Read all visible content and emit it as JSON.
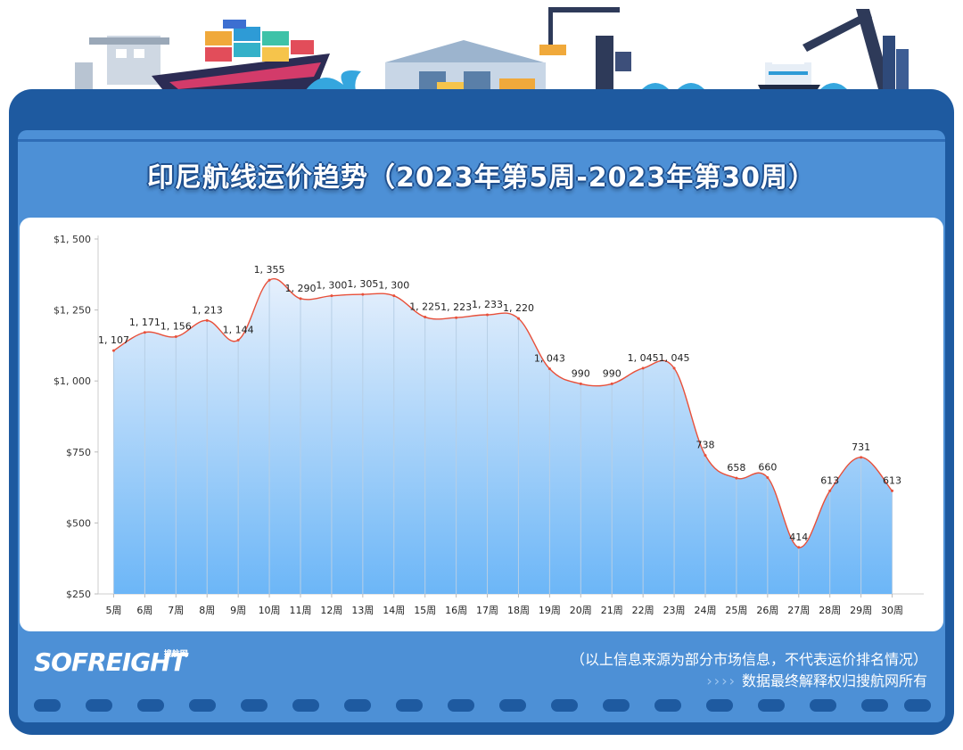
{
  "title": "印尼航线运价趋势（2023年第5周-2023年第30周）",
  "footer": {
    "logo": "SOFREIGHT",
    "logo_sub": "搜航网",
    "note_line1": "（以上信息来源为部分市场信息，不代表运价排名情况）",
    "note_line2": "数据最终解释权归搜航网所有",
    "arrows": "››››"
  },
  "colors": {
    "frame": "#1e5aa0",
    "panel": "#4d90d6",
    "line": "#e8503a",
    "area_top": "#e6f0fc",
    "area_bottom": "#6cb6f7"
  },
  "chart_data": {
    "type": "area",
    "title": "印尼航线运价趋势（2023年第5周-2023年第30周）",
    "categories": [
      "5周",
      "6周",
      "7周",
      "8周",
      "9周",
      "10周",
      "11周",
      "12周",
      "13周",
      "14周",
      "15周",
      "16周",
      "17周",
      "18周",
      "19周",
      "20周",
      "21周",
      "22周",
      "23周",
      "24周",
      "25周",
      "26周",
      "27周",
      "28周",
      "29周",
      "30周"
    ],
    "values": [
      1107,
      1171,
      1156,
      1213,
      1144,
      1355,
      1290,
      1300,
      1305,
      1300,
      1225,
      1223,
      1233,
      1220,
      1043,
      990,
      990,
      1045,
      1045,
      738,
      658,
      660,
      414,
      613,
      731,
      613
    ],
    "value_labels": [
      "1, 107",
      "1, 171",
      "1, 156",
      "1, 213",
      "1, 144",
      "1, 355",
      "1, 290",
      "1, 300",
      "1, 305",
      "1, 300",
      "1, 225",
      "1, 223",
      "1, 233",
      "1, 220",
      "1, 043",
      "990",
      "990",
      "1, 045",
      "1, 045",
      "738",
      "658",
      "660",
      "414",
      "613",
      "731",
      "613"
    ],
    "yticks": [
      250,
      500,
      750,
      1000,
      1250,
      1500
    ],
    "ytick_labels": [
      "$250",
      "$500",
      "$750",
      "$1, 000",
      "$1, 250",
      "$1, 500"
    ],
    "ylim": [
      250,
      1500
    ],
    "xlabel": "",
    "ylabel": "",
    "grid": "vertical drop lines",
    "legend": "none"
  }
}
